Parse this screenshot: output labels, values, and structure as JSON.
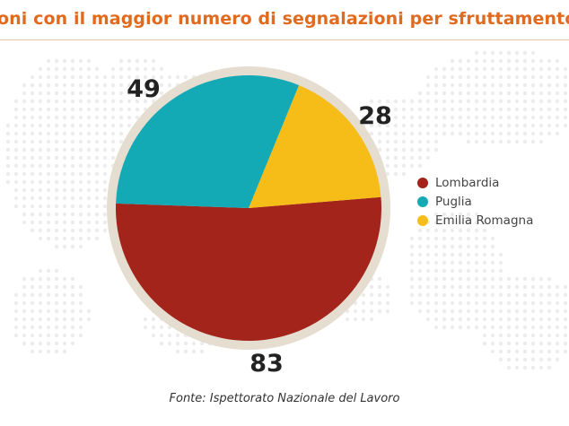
{
  "header": {
    "title": "oni con il maggior numero di segnalazioni per sfruttamento di"
  },
  "footer": {
    "source": "Fonte: Ispettorato Nazionale del Lavoro"
  },
  "colors": {
    "lombardia": "#a3241a",
    "puglia": "#13aab6",
    "emilia_romagna": "#f6bd18",
    "ring": "#e4ddd0",
    "map_dots": "#ececec",
    "title": "#e06a1e"
  },
  "chart_data": {
    "type": "pie",
    "legend_position": "right",
    "slices": [
      {
        "label": "Lombardia",
        "value": 83,
        "color": "#a3241a"
      },
      {
        "label": "Puglia",
        "value": 49,
        "color": "#13aab6"
      },
      {
        "label": "Emilia Romagna",
        "value": 28,
        "color": "#f6bd18"
      }
    ]
  }
}
